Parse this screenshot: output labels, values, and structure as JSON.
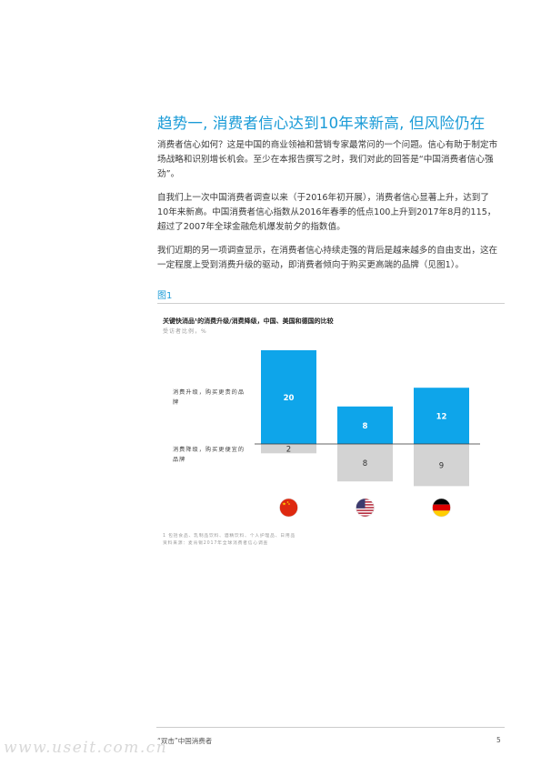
{
  "heading": "趋势一, 消费者信心达到10年来新高, 但风险仍在",
  "paragraphs": {
    "p1": "消费者信心如何？这是中国的商业领袖和营销专家最常问的一个问题。信心有助于制定市场战略和识别增长机会。至少在本报告撰写之时，我们对此的回答是“中国消费者信心强劲”。",
    "p2": "自我们上一次中国消费者调查以来（于2016年初开展），消费者信心显著上升，达到了10年来新高。中国消费者信心指数从2016年春季的低点100上升到2017年8月的115，超过了2007年全球金融危机爆发前夕的指数值。",
    "p3": "我们近期的另一项调查显示，在消费者信心持续走强的背后是越来越多的自由支出，这在一定程度上受到消费升级的驱动，即消费者倾向于购买更高端的品牌（见图1）。"
  },
  "figure": {
    "label": "图1",
    "title": "关键快消品¹的消费升级/消费降级，中国、美国和德国的比较",
    "subtitle": "受访者比例，%",
    "row_labels": {
      "up": "消费升级，购买更贵的品牌",
      "down": "消费降级，购买更便宜的品牌"
    },
    "footnotes": {
      "f1": "1 包括食品、乳制品饮料、酒精饮料、个人护理品、日用品",
      "source": "资料来源：麦肯锡2017年全球消费者信心调查"
    }
  },
  "chart_data": {
    "type": "bar",
    "categories": [
      "中国",
      "美国",
      "德国"
    ],
    "category_icons": [
      "china-flag-icon",
      "usa-flag-icon",
      "germany-flag-icon"
    ],
    "series": [
      {
        "values": [
          20,
          8,
          12
        ],
        "color": "#0ea5ea"
      },
      {
        "values": [
          2,
          8,
          9
        ],
        "color": "#d3d3d3"
      }
    ],
    "ylim": [
      -9,
      20
    ],
    "grid": false,
    "legend": "none"
  },
  "footer": {
    "text": "“双击”中国消费者",
    "page": "5"
  },
  "watermark": "www.useit.com.cn"
}
